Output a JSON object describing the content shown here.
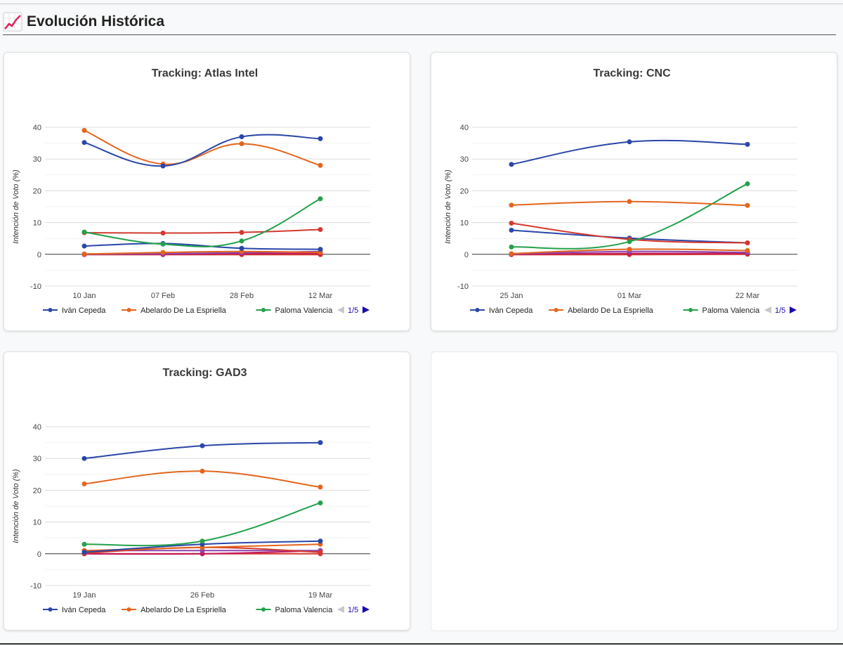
{
  "header": {
    "icon": "chart-increasing-icon",
    "title": "Evolución Histórica"
  },
  "legend_pager": {
    "label": "1/5",
    "prev_icon": "triangle-left-icon",
    "next_icon": "triangle-right-icon"
  },
  "chart_data": [
    {
      "type": "line",
      "title": "Tracking: Atlas Intel",
      "ylabel": "Intención de Voto (%)",
      "ylim": [
        -10,
        40
      ],
      "yticks": [
        -10,
        0,
        10,
        20,
        30,
        40
      ],
      "grid": true,
      "legend": "bottom",
      "categories": [
        "10 Jan",
        "07 Feb",
        "28 Feb",
        "12 Mar"
      ],
      "series": [
        {
          "name": "Iván Cepeda",
          "color": "#2a46a8",
          "values": [
            35.2,
            27.8,
            37,
            36.4
          ]
        },
        {
          "name": "Abelardo De La Espriella",
          "color": "#e3651d",
          "values": [
            39,
            28.4,
            34.8,
            28
          ]
        },
        {
          "name": "Paloma Valencia",
          "color": "#22a14a",
          "values": [
            7,
            3.2,
            4.2,
            17.5
          ]
        },
        {
          "color": "#d33a2f",
          "values": [
            6.8,
            6.7,
            6.9,
            7.8
          ]
        },
        {
          "color": "#2a46a8",
          "values": [
            2.6,
            3.4,
            1.9,
            1.6
          ]
        },
        {
          "color": "#e3651d",
          "values": [
            0.1,
            0.6,
            0.9,
            0.6
          ]
        },
        {
          "color": "#8e44ad",
          "values": [
            0,
            0.2,
            0.5,
            0.9
          ]
        },
        {
          "color": "#c2185b",
          "values": [
            0.1,
            0,
            0.2,
            0.3
          ]
        },
        {
          "color": "#d33a2f",
          "values": [
            -0.1,
            -0.1,
            -0.1,
            -0.1
          ]
        }
      ]
    },
    {
      "type": "line",
      "title": "Tracking: CNC",
      "ylabel": "Intención de Voto (%)",
      "ylim": [
        -10,
        40
      ],
      "yticks": [
        -10,
        0,
        10,
        20,
        30,
        40
      ],
      "grid": true,
      "legend": "bottom",
      "categories": [
        "25 Jan",
        "01 Mar",
        "22 Mar"
      ],
      "series": [
        {
          "name": "Iván Cepeda",
          "color": "#2a46a8",
          "values": [
            28.3,
            35.4,
            34.6
          ]
        },
        {
          "name": "Abelardo De La Espriella",
          "color": "#e3651d",
          "values": [
            15.5,
            16.6,
            15.4
          ]
        },
        {
          "name": "Paloma Valencia",
          "color": "#22a14a",
          "values": [
            2.3,
            4,
            22.2
          ]
        },
        {
          "color": "#d33a2f",
          "values": [
            9.8,
            4.7,
            3.6
          ]
        },
        {
          "color": "#2a46a8",
          "values": [
            7.6,
            5.1,
            3.6
          ]
        },
        {
          "color": "#e3651d",
          "values": [
            0.2,
            1.6,
            1.2
          ]
        },
        {
          "color": "#8e44ad",
          "values": [
            0.1,
            0.9,
            0.6
          ]
        },
        {
          "color": "#c2185b",
          "values": [
            0,
            0.3,
            0.3
          ]
        },
        {
          "color": "#d33a2f",
          "values": [
            -0.1,
            -0.1,
            0
          ]
        }
      ]
    },
    {
      "type": "line",
      "title": "Tracking: GAD3",
      "ylabel": "Intención de Voto (%)",
      "ylim": [
        -10,
        40
      ],
      "yticks": [
        -10,
        0,
        10,
        20,
        30,
        40
      ],
      "grid": true,
      "legend": "bottom",
      "categories": [
        "19 Jan",
        "26 Feb",
        "19 Mar"
      ],
      "series": [
        {
          "name": "Iván Cepeda",
          "color": "#2a46a8",
          "values": [
            30,
            34,
            35
          ]
        },
        {
          "name": "Abelardo De La Espriella",
          "color": "#e3651d",
          "values": [
            22,
            26,
            21
          ]
        },
        {
          "name": "Paloma Valencia",
          "color": "#22a14a",
          "values": [
            3,
            4,
            16
          ]
        },
        {
          "color": "#2a46a8",
          "values": [
            0.5,
            3,
            4
          ]
        },
        {
          "color": "#e3651d",
          "values": [
            1,
            2,
            3
          ]
        },
        {
          "color": "#d33a2f",
          "values": [
            0.2,
            2,
            0.5
          ]
        },
        {
          "color": "#8e44ad",
          "values": [
            1,
            1,
            1
          ]
        },
        {
          "color": "#c2185b",
          "values": [
            0,
            0,
            1
          ]
        },
        {
          "color": "#d33a2f",
          "values": [
            0,
            0,
            0
          ]
        }
      ]
    }
  ]
}
